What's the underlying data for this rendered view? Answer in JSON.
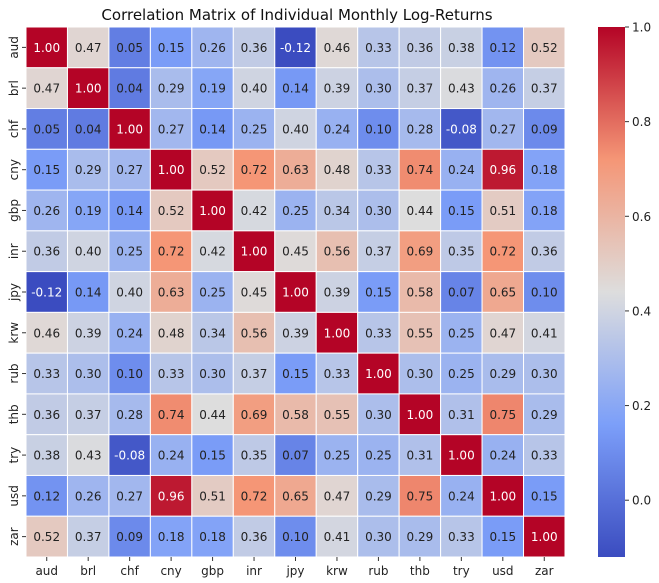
{
  "chart_data": {
    "type": "heatmap",
    "title": "Correlation Matrix of Individual Monthly Log-Returns",
    "xlabel": "",
    "ylabel": "",
    "labels": [
      "aud",
      "brl",
      "chf",
      "cny",
      "gbp",
      "inr",
      "jpy",
      "krw",
      "rub",
      "thb",
      "try",
      "usd",
      "zar"
    ],
    "values": [
      [
        1.0,
        0.47,
        0.05,
        0.15,
        0.26,
        0.36,
        -0.12,
        0.46,
        0.33,
        0.36,
        0.38,
        0.12,
        0.52
      ],
      [
        0.47,
        1.0,
        0.04,
        0.29,
        0.19,
        0.4,
        0.14,
        0.39,
        0.3,
        0.37,
        0.43,
        0.26,
        0.37
      ],
      [
        0.05,
        0.04,
        1.0,
        0.27,
        0.14,
        0.25,
        0.4,
        0.24,
        0.1,
        0.28,
        -0.08,
        0.27,
        0.09
      ],
      [
        0.15,
        0.29,
        0.27,
        1.0,
        0.52,
        0.72,
        0.63,
        0.48,
        0.33,
        0.74,
        0.24,
        0.96,
        0.18
      ],
      [
        0.26,
        0.19,
        0.14,
        0.52,
        1.0,
        0.42,
        0.25,
        0.34,
        0.3,
        0.44,
        0.15,
        0.51,
        0.18
      ],
      [
        0.36,
        0.4,
        0.25,
        0.72,
        0.42,
        1.0,
        0.45,
        0.56,
        0.37,
        0.69,
        0.35,
        0.72,
        0.36
      ],
      [
        -0.12,
        0.14,
        0.4,
        0.63,
        0.25,
        0.45,
        1.0,
        0.39,
        0.15,
        0.58,
        0.07,
        0.65,
        0.1
      ],
      [
        0.46,
        0.39,
        0.24,
        0.48,
        0.34,
        0.56,
        0.39,
        1.0,
        0.33,
        0.55,
        0.25,
        0.47,
        0.41
      ],
      [
        0.33,
        0.3,
        0.1,
        0.33,
        0.3,
        0.37,
        0.15,
        0.33,
        1.0,
        0.3,
        0.25,
        0.29,
        0.3
      ],
      [
        0.36,
        0.37,
        0.28,
        0.74,
        0.44,
        0.69,
        0.58,
        0.55,
        0.3,
        1.0,
        0.31,
        0.75,
        0.29
      ],
      [
        0.38,
        0.43,
        -0.08,
        0.24,
        0.15,
        0.35,
        0.07,
        0.25,
        0.25,
        0.31,
        1.0,
        0.24,
        0.33
      ],
      [
        0.12,
        0.26,
        0.27,
        0.96,
        0.51,
        0.72,
        0.65,
        0.47,
        0.29,
        0.75,
        0.24,
        1.0,
        0.15
      ],
      [
        0.52,
        0.37,
        0.09,
        0.18,
        0.18,
        0.36,
        0.1,
        0.41,
        0.3,
        0.29,
        0.33,
        0.15,
        1.0
      ]
    ],
    "colormap": "coolwarm",
    "vmin": -0.12,
    "vmax": 1.0,
    "colorbar_ticks": [
      "0.0",
      "0.2",
      "0.4",
      "0.6",
      "0.8",
      "1.0"
    ],
    "colorbar_tick_values": [
      0.0,
      0.2,
      0.4,
      0.6,
      0.8,
      1.0
    ],
    "annotated": true,
    "legend": "colorbar-right"
  }
}
